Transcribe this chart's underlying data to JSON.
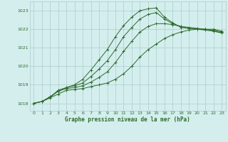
{
  "title": "Graphe pression niveau de la mer (hPa)",
  "bg_color": "#d4eeee",
  "grid_color": "#aacccc",
  "line_color": "#2d6b2d",
  "xlim": [
    -0.5,
    23.5
  ],
  "ylim": [
    1017.6,
    1023.5
  ],
  "yticks": [
    1018,
    1019,
    1020,
    1021,
    1022,
    1023
  ],
  "xticks": [
    0,
    1,
    2,
    3,
    4,
    5,
    6,
    7,
    8,
    9,
    10,
    11,
    12,
    13,
    14,
    15,
    16,
    17,
    18,
    19,
    20,
    21,
    22,
    23
  ],
  "series": [
    [
      1018.0,
      1018.1,
      1018.3,
      1018.5,
      1018.7,
      1018.75,
      1018.8,
      1018.9,
      1019.0,
      1019.1,
      1019.3,
      1019.6,
      1020.0,
      1020.5,
      1020.9,
      1021.2,
      1021.5,
      1021.7,
      1021.85,
      1021.95,
      1022.0,
      1022.0,
      1022.0,
      1021.9
    ],
    [
      1018.0,
      1018.1,
      1018.35,
      1018.65,
      1018.8,
      1018.85,
      1018.95,
      1019.15,
      1019.4,
      1019.7,
      1020.2,
      1020.8,
      1021.35,
      1021.85,
      1022.15,
      1022.3,
      1022.3,
      1022.25,
      1022.15,
      1022.1,
      1022.05,
      1022.0,
      1021.95,
      1021.85
    ],
    [
      1018.0,
      1018.1,
      1018.35,
      1018.7,
      1018.85,
      1018.95,
      1019.1,
      1019.45,
      1019.85,
      1020.3,
      1020.9,
      1021.6,
      1022.1,
      1022.55,
      1022.8,
      1022.9,
      1022.55,
      1022.3,
      1022.15,
      1022.05,
      1022.0,
      1021.95,
      1021.9,
      1021.8
    ],
    [
      1018.0,
      1018.1,
      1018.3,
      1018.7,
      1018.85,
      1019.0,
      1019.3,
      1019.8,
      1020.35,
      1020.9,
      1021.6,
      1022.2,
      1022.65,
      1023.0,
      1023.1,
      1023.15,
      1022.65,
      1022.35,
      1022.1,
      1022.05,
      1022.0,
      1022.0,
      1021.9,
      1021.8
    ]
  ]
}
